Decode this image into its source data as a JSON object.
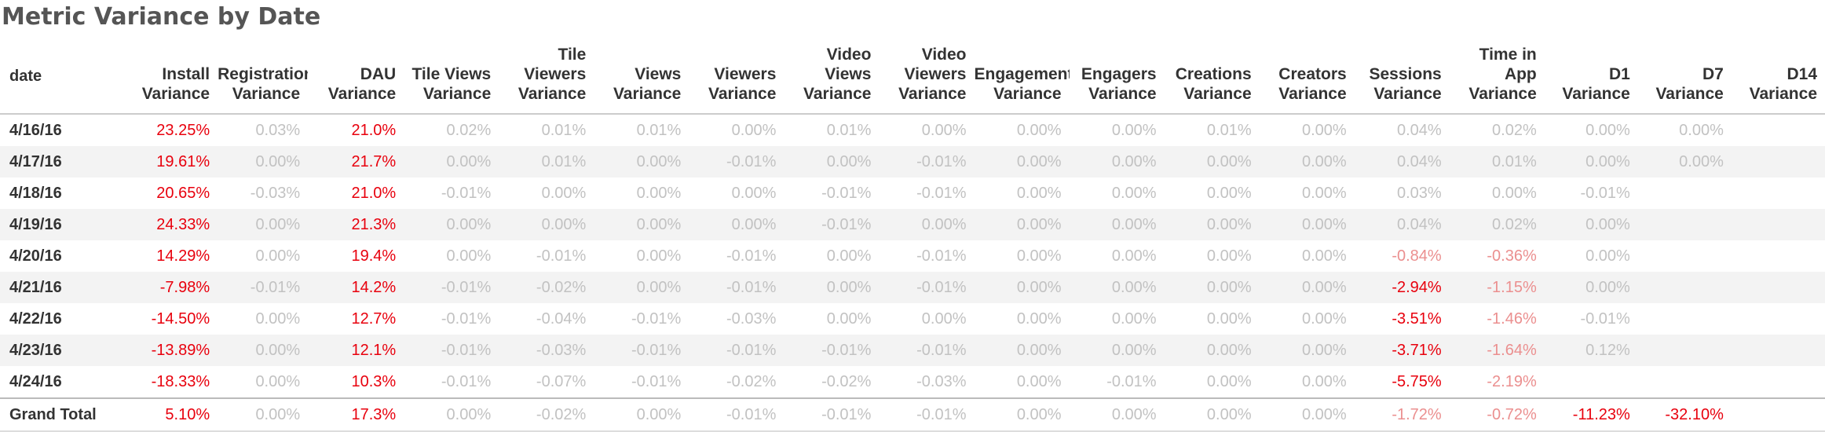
{
  "title": "Metric Variance by Date",
  "colors": {
    "strong_negative_or_large": "#e8000d",
    "weak_negative": "#eb8f8f",
    "neutral": "#c2c2c2",
    "stripe": "#f3f3f3"
  },
  "columns": [
    {
      "key": "date",
      "label": "date"
    },
    {
      "key": "install",
      "label": "Install Variance"
    },
    {
      "key": "registration",
      "label": "Registration Variance"
    },
    {
      "key": "dau",
      "label": "DAU Variance"
    },
    {
      "key": "tile_views",
      "label": "Tile Views Variance"
    },
    {
      "key": "tile_viewers",
      "label": "Tile Viewers Variance"
    },
    {
      "key": "views",
      "label": "Views Variance"
    },
    {
      "key": "viewers",
      "label": "Viewers Variance"
    },
    {
      "key": "video_views",
      "label": "Video Views Variance"
    },
    {
      "key": "video_viewers",
      "label": "Video Viewers Variance"
    },
    {
      "key": "engagements",
      "label": "Engagements Variance"
    },
    {
      "key": "engagers",
      "label": "Engagers Variance"
    },
    {
      "key": "creations",
      "label": "Creations Variance"
    },
    {
      "key": "creators",
      "label": "Creators Variance"
    },
    {
      "key": "sessions",
      "label": "Sessions Variance"
    },
    {
      "key": "time_in_app",
      "label": "Time in App Variance"
    },
    {
      "key": "d1",
      "label": "D1 Variance"
    },
    {
      "key": "d7",
      "label": "D7 Variance"
    },
    {
      "key": "d14",
      "label": "D14 Variance"
    }
  ],
  "rows": [
    {
      "date": "4/16/16",
      "cells": [
        "23.25%",
        "0.03%",
        "21.0%",
        "0.02%",
        "0.01%",
        "0.01%",
        "0.00%",
        "0.01%",
        "0.00%",
        "0.00%",
        "0.00%",
        "0.01%",
        "0.00%",
        "0.04%",
        "0.02%",
        "0.00%",
        "0.00%",
        ""
      ],
      "tones": [
        "red",
        "grey",
        "red",
        "grey",
        "grey",
        "grey",
        "grey",
        "grey",
        "grey",
        "grey",
        "grey",
        "grey",
        "grey",
        "grey",
        "grey",
        "grey",
        "grey",
        "grey"
      ]
    },
    {
      "date": "4/17/16",
      "cells": [
        "19.61%",
        "0.00%",
        "21.7%",
        "0.00%",
        "0.01%",
        "0.00%",
        "-0.01%",
        "0.00%",
        "-0.01%",
        "0.00%",
        "0.00%",
        "0.00%",
        "0.00%",
        "0.04%",
        "0.01%",
        "0.00%",
        "0.00%",
        ""
      ],
      "tones": [
        "red",
        "grey",
        "red",
        "grey",
        "grey",
        "grey",
        "grey",
        "grey",
        "grey",
        "grey",
        "grey",
        "grey",
        "grey",
        "grey",
        "grey",
        "grey",
        "grey",
        "grey"
      ]
    },
    {
      "date": "4/18/16",
      "cells": [
        "20.65%",
        "-0.03%",
        "21.0%",
        "-0.01%",
        "0.00%",
        "0.00%",
        "0.00%",
        "-0.01%",
        "-0.01%",
        "0.00%",
        "0.00%",
        "0.00%",
        "0.00%",
        "0.03%",
        "0.00%",
        "-0.01%",
        "",
        ""
      ],
      "tones": [
        "red",
        "grey",
        "red",
        "grey",
        "grey",
        "grey",
        "grey",
        "grey",
        "grey",
        "grey",
        "grey",
        "grey",
        "grey",
        "grey",
        "grey",
        "grey",
        "grey",
        "grey"
      ]
    },
    {
      "date": "4/19/16",
      "cells": [
        "24.33%",
        "0.00%",
        "21.3%",
        "0.00%",
        "0.00%",
        "0.00%",
        "0.00%",
        "-0.01%",
        "0.00%",
        "0.00%",
        "0.00%",
        "0.00%",
        "0.00%",
        "0.04%",
        "0.02%",
        "0.00%",
        "",
        ""
      ],
      "tones": [
        "red",
        "grey",
        "red",
        "grey",
        "grey",
        "grey",
        "grey",
        "grey",
        "grey",
        "grey",
        "grey",
        "grey",
        "grey",
        "grey",
        "grey",
        "grey",
        "grey",
        "grey"
      ]
    },
    {
      "date": "4/20/16",
      "cells": [
        "14.29%",
        "0.00%",
        "19.4%",
        "0.00%",
        "-0.01%",
        "0.00%",
        "-0.01%",
        "0.00%",
        "-0.01%",
        "0.00%",
        "0.00%",
        "0.00%",
        "0.00%",
        "-0.84%",
        "-0.36%",
        "0.00%",
        "",
        ""
      ],
      "tones": [
        "red",
        "grey",
        "red",
        "grey",
        "grey",
        "grey",
        "grey",
        "grey",
        "grey",
        "grey",
        "grey",
        "grey",
        "grey",
        "pink",
        "pink",
        "grey",
        "grey",
        "grey"
      ]
    },
    {
      "date": "4/21/16",
      "cells": [
        "-7.98%",
        "-0.01%",
        "14.2%",
        "-0.01%",
        "-0.02%",
        "0.00%",
        "-0.01%",
        "0.00%",
        "-0.01%",
        "0.00%",
        "0.00%",
        "0.00%",
        "0.00%",
        "-2.94%",
        "-1.15%",
        "0.00%",
        "",
        ""
      ],
      "tones": [
        "red",
        "grey",
        "red",
        "grey",
        "grey",
        "grey",
        "grey",
        "grey",
        "grey",
        "grey",
        "grey",
        "grey",
        "grey",
        "red",
        "pink",
        "grey",
        "grey",
        "grey"
      ]
    },
    {
      "date": "4/22/16",
      "cells": [
        "-14.50%",
        "0.00%",
        "12.7%",
        "-0.01%",
        "-0.04%",
        "-0.01%",
        "-0.03%",
        "0.00%",
        "0.00%",
        "0.00%",
        "0.00%",
        "0.00%",
        "0.00%",
        "-3.51%",
        "-1.46%",
        "-0.01%",
        "",
        ""
      ],
      "tones": [
        "red",
        "grey",
        "red",
        "grey",
        "grey",
        "grey",
        "grey",
        "grey",
        "grey",
        "grey",
        "grey",
        "grey",
        "grey",
        "red",
        "pink",
        "grey",
        "grey",
        "grey"
      ]
    },
    {
      "date": "4/23/16",
      "cells": [
        "-13.89%",
        "0.00%",
        "12.1%",
        "-0.01%",
        "-0.03%",
        "-0.01%",
        "-0.01%",
        "-0.01%",
        "-0.01%",
        "0.00%",
        "0.00%",
        "0.00%",
        "0.00%",
        "-3.71%",
        "-1.64%",
        "0.12%",
        "",
        ""
      ],
      "tones": [
        "red",
        "grey",
        "red",
        "grey",
        "grey",
        "grey",
        "grey",
        "grey",
        "grey",
        "grey",
        "grey",
        "grey",
        "grey",
        "red",
        "pink",
        "grey",
        "grey",
        "grey"
      ]
    },
    {
      "date": "4/24/16",
      "cells": [
        "-18.33%",
        "0.00%",
        "10.3%",
        "-0.01%",
        "-0.07%",
        "-0.01%",
        "-0.02%",
        "-0.02%",
        "-0.03%",
        "0.00%",
        "-0.01%",
        "0.00%",
        "0.00%",
        "-5.75%",
        "-2.19%",
        "",
        "",
        ""
      ],
      "tones": [
        "red",
        "grey",
        "red",
        "grey",
        "grey",
        "grey",
        "grey",
        "grey",
        "grey",
        "grey",
        "grey",
        "grey",
        "grey",
        "red",
        "pink",
        "grey",
        "grey",
        "grey"
      ]
    }
  ],
  "grand_total": {
    "label": "Grand Total",
    "cells": [
      "5.10%",
      "0.00%",
      "17.3%",
      "0.00%",
      "-0.02%",
      "0.00%",
      "-0.01%",
      "-0.01%",
      "-0.01%",
      "0.00%",
      "0.00%",
      "0.00%",
      "0.00%",
      "-1.72%",
      "-0.72%",
      "-11.23%",
      "-32.10%",
      ""
    ],
    "tones": [
      "red",
      "grey",
      "red",
      "grey",
      "grey",
      "grey",
      "grey",
      "grey",
      "grey",
      "grey",
      "grey",
      "grey",
      "grey",
      "pink",
      "pink",
      "red",
      "red",
      "grey"
    ]
  }
}
